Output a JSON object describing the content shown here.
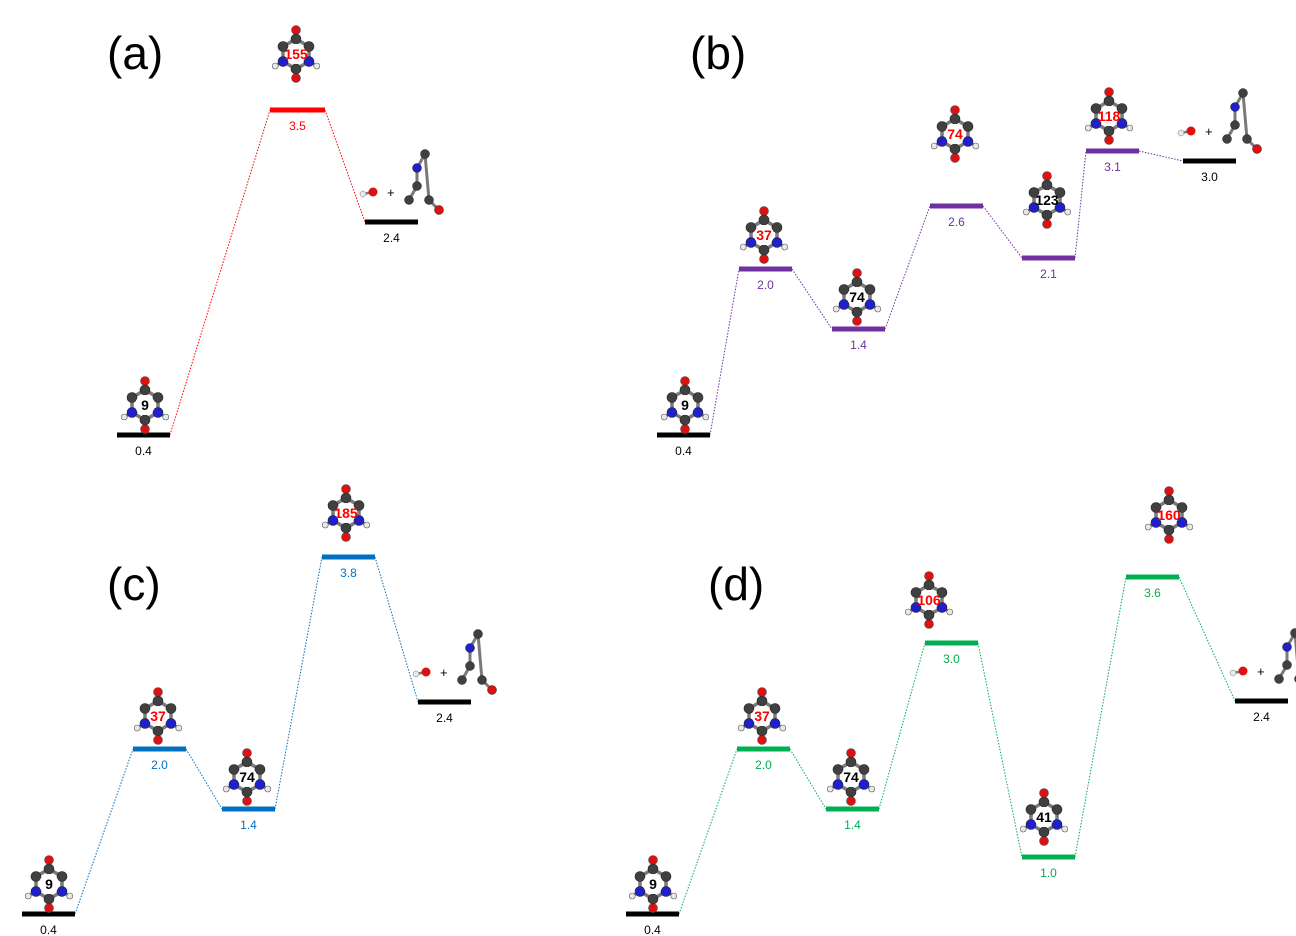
{
  "colors": {
    "a": "#ff0000",
    "b": "#7030a0",
    "c": "#0070c0",
    "d": "#00b050",
    "terminal": "#000000",
    "ring_highlight": "#ff0000"
  },
  "molecule_style": {
    "carbon": "#404040",
    "nitrogen": "#1f1fcc",
    "oxygen": "#dd1111",
    "hydrogen": "#e8e8e8"
  },
  "panels": [
    {
      "id": "a",
      "label": "(a)",
      "levels": [
        {
          "energy": "0.4",
          "type": "terminal",
          "ring_size": "9",
          "ring_highlight": false
        },
        {
          "energy": "3.5",
          "type": "ts",
          "ring_size": "155",
          "ring_highlight": true
        },
        {
          "energy": "2.4",
          "type": "terminal",
          "product": "+"
        }
      ]
    },
    {
      "id": "b",
      "label": "(b)",
      "levels": [
        {
          "energy": "0.4",
          "type": "terminal",
          "ring_size": "9",
          "ring_highlight": false
        },
        {
          "energy": "2.0",
          "type": "ts",
          "ring_size": "37",
          "ring_highlight": true
        },
        {
          "energy": "1.4",
          "type": "int",
          "ring_size": "74",
          "ring_highlight": false
        },
        {
          "energy": "2.6",
          "type": "ts",
          "ring_size": "74",
          "ring_highlight": true
        },
        {
          "energy": "2.1",
          "type": "int",
          "ring_size": "123",
          "ring_highlight": false
        },
        {
          "energy": "3.1",
          "type": "ts",
          "ring_size": "118",
          "ring_highlight": true
        },
        {
          "energy": "3.0",
          "type": "terminal",
          "product": "+"
        }
      ]
    },
    {
      "id": "c",
      "label": "(c)",
      "levels": [
        {
          "energy": "0.4",
          "type": "terminal",
          "ring_size": "9",
          "ring_highlight": false
        },
        {
          "energy": "2.0",
          "type": "ts",
          "ring_size": "37",
          "ring_highlight": true
        },
        {
          "energy": "1.4",
          "type": "int",
          "ring_size": "74",
          "ring_highlight": false
        },
        {
          "energy": "3.8",
          "type": "ts",
          "ring_size": "185",
          "ring_highlight": true
        },
        {
          "energy": "2.4",
          "type": "terminal",
          "product": "+"
        }
      ]
    },
    {
      "id": "d",
      "label": "(d)",
      "levels": [
        {
          "energy": "0.4",
          "type": "terminal",
          "ring_size": "9",
          "ring_highlight": false
        },
        {
          "energy": "2.0",
          "type": "ts",
          "ring_size": "37",
          "ring_highlight": true
        },
        {
          "energy": "1.4",
          "type": "int",
          "ring_size": "74",
          "ring_highlight": false
        },
        {
          "energy": "3.0",
          "type": "ts",
          "ring_size": "106",
          "ring_highlight": true
        },
        {
          "energy": "1.0",
          "type": "int",
          "ring_size": "41",
          "ring_highlight": false
        },
        {
          "energy": "3.6",
          "type": "ts",
          "ring_size": "160",
          "ring_highlight": true
        },
        {
          "energy": "2.4",
          "type": "terminal",
          "product": "+"
        }
      ]
    }
  ]
}
